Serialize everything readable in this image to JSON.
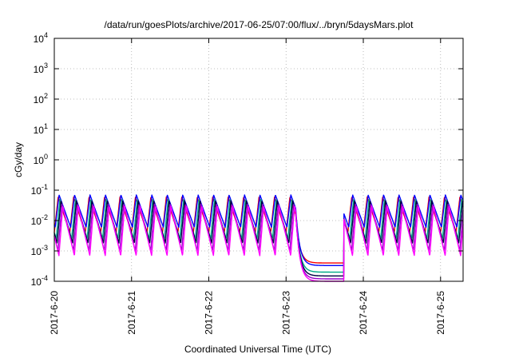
{
  "chart_data": {
    "type": "line",
    "title": "/data/run/goesPlots/archive/2017-06-25/07:00/flux/../bryn/5daysMars.plot",
    "xlabel": "Coordinated Universal Time (UTC)",
    "ylabel": "cGy/day",
    "yscale": "log",
    "ylim": [
      0.0001,
      10000
    ],
    "xlim": [
      "2017-06-20 00:00",
      "2017-06-25 07:00"
    ],
    "grid": true,
    "x_tick_labels": [
      "2017-6-20",
      "2017-6-21",
      "2017-6-22",
      "2017-6-23",
      "2017-6-24",
      "2017-6-25"
    ],
    "y_ticks": [
      {
        "base": "10",
        "exp": "-4"
      },
      {
        "base": "10",
        "exp": "-3"
      },
      {
        "base": "10",
        "exp": "-2"
      },
      {
        "base": "10",
        "exp": "-1"
      },
      {
        "base": "10",
        "exp": "0"
      },
      {
        "base": "10",
        "exp": "1"
      },
      {
        "base": "10",
        "exp": "2"
      },
      {
        "base": "10",
        "exp": "3"
      },
      {
        "base": "10",
        "exp": "4"
      }
    ],
    "pattern": {
      "period_days": 0.2,
      "peak": 0.06,
      "quiet_start": "2017-06-23 03:00",
      "quiet_end": "2017-06-23 18:00"
    },
    "series": [
      {
        "color": "#ff0000",
        "trough": 0.004,
        "peak": 0.06,
        "quiet": 0.0004
      },
      {
        "color": "#0000ff",
        "trough": 0.006,
        "peak": 0.07,
        "quiet": 0.00033
      },
      {
        "color": "#00aa88",
        "trough": 0.0025,
        "peak": 0.05,
        "quiet": 0.0002
      },
      {
        "color": "#000044",
        "trough": 0.0018,
        "peak": 0.045,
        "quiet": 0.00015
      },
      {
        "color": "#9900cc",
        "trough": 0.001,
        "peak": 0.035,
        "quiet": 0.00012
      },
      {
        "color": "#ff00ff",
        "trough": 0.0007,
        "peak": 0.03,
        "quiet": 0.0001
      }
    ]
  }
}
